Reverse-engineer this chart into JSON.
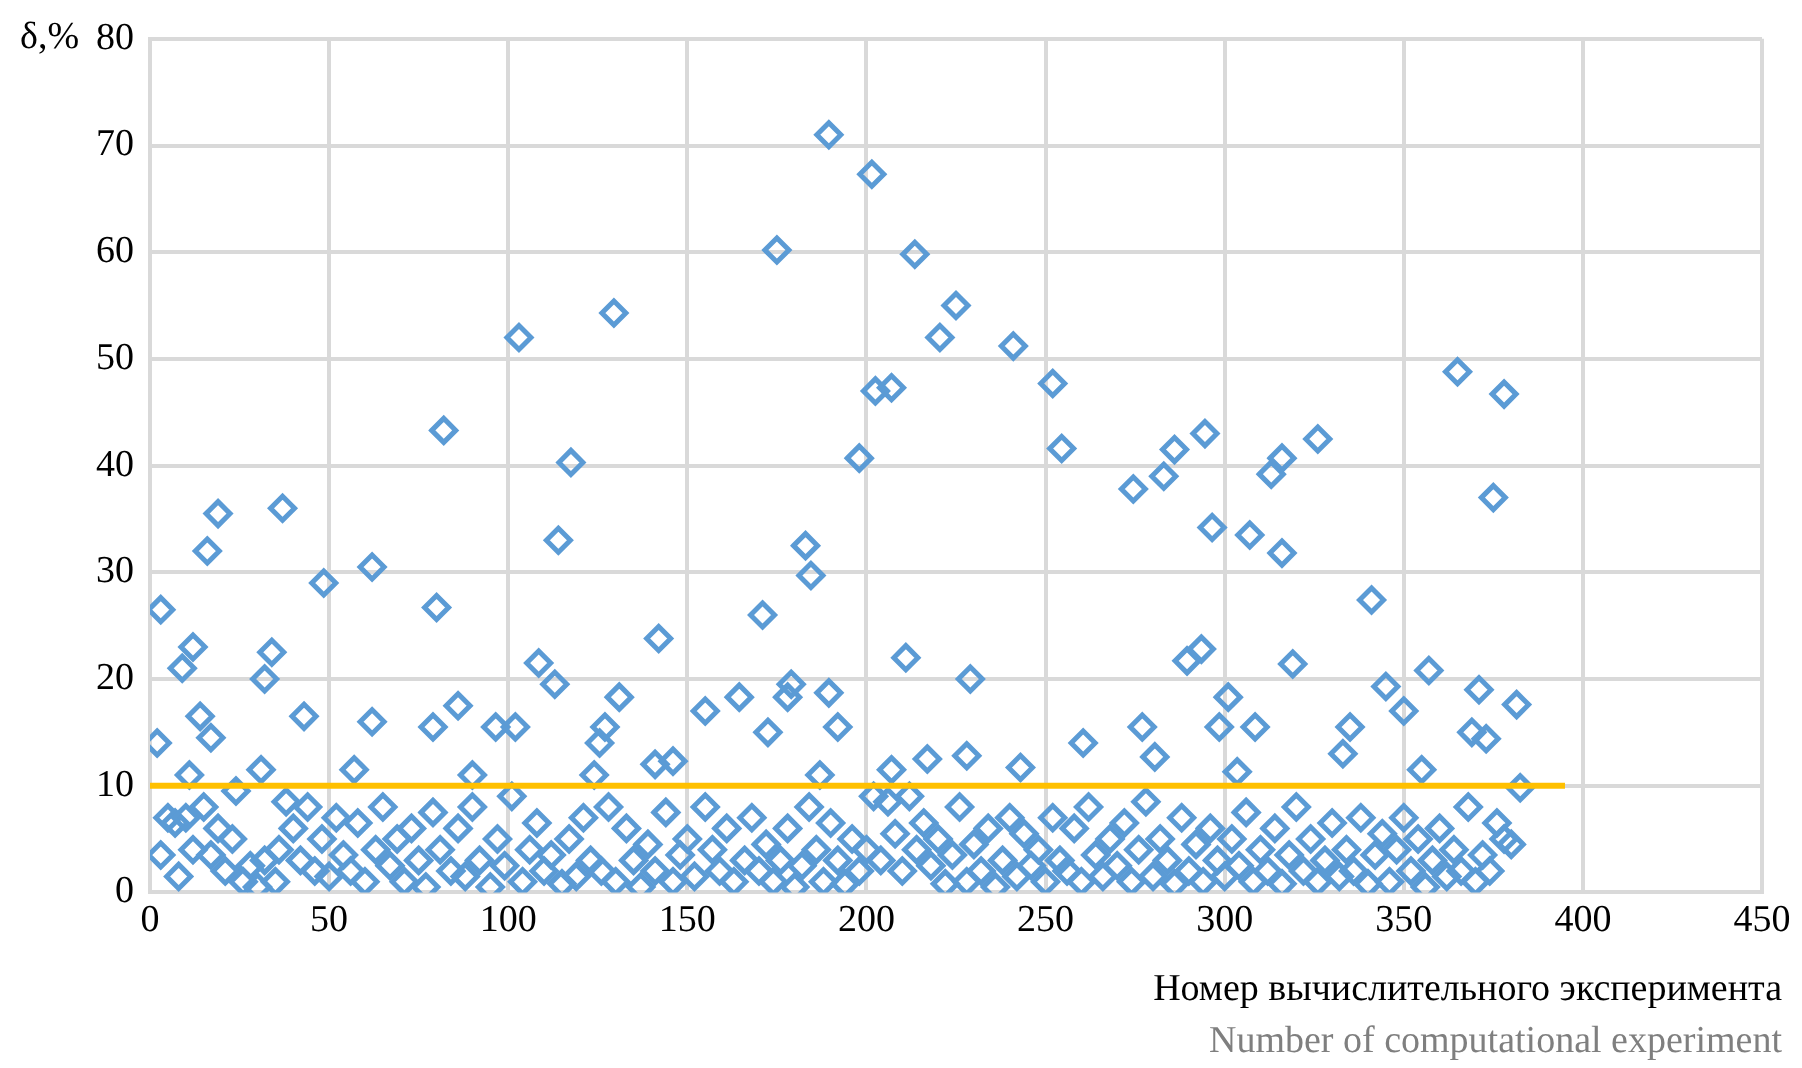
{
  "chart_data": {
    "type": "scatter",
    "ylabel": "δ,%",
    "xlabel": "Номер вычислительного эксперимента",
    "annotations": [
      "Number of computational experiment"
    ],
    "xlim": [
      0,
      450
    ],
    "xticks": [
      0,
      50,
      100,
      150,
      200,
      250,
      300,
      350,
      400,
      450
    ],
    "ylim": [
      0,
      80
    ],
    "yticks": [
      0,
      10,
      20,
      30,
      40,
      50,
      60,
      70,
      80
    ],
    "grid": true,
    "legend": false,
    "series": [
      {
        "marker": "diamond",
        "color": "#5b9bd5",
        "x": [
          2,
          3,
          9,
          12,
          11,
          14,
          17,
          16,
          19,
          32,
          34,
          37,
          31,
          43,
          48.5,
          62,
          62,
          57,
          80,
          82,
          79,
          86,
          90,
          96.5,
          102,
          103,
          108.5,
          113,
          114,
          117.5,
          124,
          127,
          129.5,
          131,
          125.5,
          142,
          141,
          146,
          155,
          164.5,
          171,
          172.5,
          175,
          178,
          179,
          183,
          184.5,
          187,
          189.5,
          192,
          189.5,
          198,
          201.5,
          202.5,
          207,
          207,
          211,
          213.5,
          217,
          220.5,
          225,
          229,
          228,
          241,
          243,
          252,
          254.5,
          260.5,
          274.5,
          277,
          280.5,
          283,
          286,
          289.5,
          293.5,
          294.5,
          296.5,
          298.5,
          301,
          303.5,
          307,
          308.5,
          313,
          316,
          316,
          319,
          326,
          333,
          335,
          341,
          345,
          350,
          355,
          357,
          365,
          369,
          371,
          373,
          375,
          378,
          381.5,
          382.5,
          3,
          5,
          7,
          8,
          10,
          12,
          15,
          17,
          19,
          21,
          23,
          24,
          26,
          28,
          30,
          32,
          35,
          36,
          38,
          40,
          42,
          44,
          46,
          48,
          50,
          52,
          54,
          56,
          58,
          60,
          63,
          65,
          67,
          69,
          71,
          73,
          75,
          77,
          79,
          81,
          84,
          86,
          88,
          90,
          92,
          95,
          97,
          99,
          101,
          104,
          106,
          108,
          110,
          112,
          115,
          117,
          119,
          121,
          123,
          126,
          128,
          130,
          133,
          135,
          137,
          139,
          141,
          144,
          146,
          148,
          150,
          152,
          155,
          157,
          159,
          161,
          163,
          166,
          168,
          170,
          172,
          174,
          176,
          178,
          180,
          182,
          184,
          186,
          188,
          190,
          192,
          194,
          196,
          198,
          200,
          202,
          204,
          206,
          208,
          210,
          212,
          214,
          216,
          218,
          220,
          222,
          224,
          226,
          228,
          230,
          232,
          234,
          236,
          238,
          240,
          242,
          244,
          246,
          248,
          250,
          252,
          254,
          256,
          258,
          260,
          262,
          264,
          266,
          268,
          270,
          272,
          274,
          276,
          278,
          280,
          282,
          284,
          286,
          288,
          290,
          292,
          294,
          296,
          298,
          300,
          302,
          304,
          306,
          308,
          310,
          312,
          314,
          316,
          318,
          320,
          322,
          324,
          326,
          328,
          330,
          332,
          334,
          336,
          338,
          340,
          342,
          344,
          346,
          348,
          350,
          352,
          354,
          356,
          358,
          360,
          362,
          364,
          366,
          368,
          370,
          372,
          374,
          376,
          378,
          380
        ],
        "values": [
          14,
          26.5,
          21,
          23,
          11,
          16.5,
          14.5,
          32,
          35.5,
          20,
          22.5,
          36,
          11.5,
          16.5,
          29,
          30.5,
          16,
          11.5,
          26.7,
          43.3,
          15.5,
          17.5,
          11,
          15.5,
          15.5,
          52,
          21.5,
          19.5,
          33,
          40.3,
          11,
          15.5,
          54.3,
          18.3,
          14,
          23.8,
          12,
          12.3,
          17,
          18.3,
          26,
          15,
          60.2,
          18.3,
          19.5,
          32.5,
          29.7,
          11,
          71,
          15.5,
          18.7,
          40.7,
          67.3,
          47,
          47.3,
          11.5,
          22,
          59.8,
          12.5,
          52,
          55,
          20,
          12.8,
          51.2,
          11.7,
          47.7,
          41.6,
          14,
          37.8,
          15.5,
          12.7,
          39,
          41.5,
          21.7,
          22.8,
          43,
          34.2,
          15.5,
          18.3,
          11.3,
          33.5,
          15.5,
          39.2,
          40.7,
          31.8,
          21.4,
          42.5,
          13,
          15.5,
          27.4,
          19.3,
          17,
          11.5,
          20.8,
          48.8,
          15,
          19,
          14.4,
          37,
          46.7,
          17.6,
          9.8,
          3.5,
          7,
          6.5,
          1.5,
          7,
          4,
          8,
          3.5,
          6,
          2,
          5,
          9.5,
          1,
          2.5,
          0.5,
          3,
          1,
          4,
          8.5,
          6,
          3,
          8,
          2,
          5,
          1.5,
          7,
          3.5,
          2,
          6.5,
          1,
          4,
          8,
          2.5,
          5,
          1,
          6,
          3,
          0.5,
          7.5,
          4,
          2,
          6,
          1.5,
          8,
          3,
          0.5,
          5,
          2.5,
          9,
          1,
          4,
          6.5,
          2,
          3.5,
          0.8,
          5,
          1.5,
          7,
          3,
          2,
          8,
          1,
          6,
          3,
          0.5,
          4.5,
          2,
          7.5,
          1,
          3.5,
          5,
          1.5,
          8,
          4,
          2,
          6,
          1,
          3,
          7,
          2,
          4.5,
          1,
          3,
          6,
          0.5,
          2.5,
          8,
          4,
          1,
          6.5,
          3,
          0.8,
          5,
          2,
          4,
          9,
          3,
          8.5,
          5.5,
          2,
          9,
          4,
          6.5,
          2.5,
          5,
          0.8,
          3.5,
          8,
          1,
          4.5,
          2,
          6,
          0.5,
          3,
          7,
          1.5,
          5.5,
          2.5,
          4,
          1,
          7,
          3,
          2,
          6,
          1,
          8,
          3.5,
          1.5,
          5,
          2.5,
          6.5,
          1,
          4,
          8.5,
          1.5,
          5,
          3,
          0.8,
          7,
          2,
          4.5,
          1,
          6,
          3,
          1.5,
          5,
          2.5,
          7.5,
          1,
          4,
          2,
          6,
          0.8,
          3.5,
          8,
          2,
          5,
          1,
          3,
          6.5,
          1.5,
          4,
          2,
          7,
          0.8,
          3.5,
          5.5,
          1,
          4,
          7,
          2,
          5,
          0.5,
          3,
          6,
          1.5,
          4,
          2,
          8,
          1,
          3.5,
          2,
          6.5,
          5,
          4.5
        ]
      },
      {
        "type": "line",
        "marker": "none",
        "line_style": "solid",
        "color": "#ffc000",
        "x": [
          0,
          395
        ],
        "values": [
          10,
          10
        ]
      }
    ]
  }
}
